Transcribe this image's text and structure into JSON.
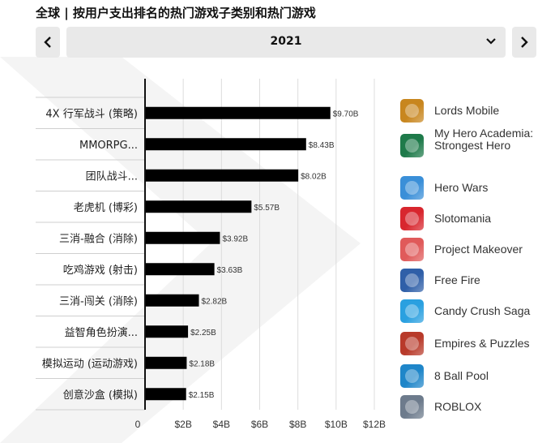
{
  "header": {
    "title": "全球 | 按用户支出排名的热门游戏子类别和热门游戏",
    "year": "2021"
  },
  "chart_data": {
    "type": "bar",
    "orientation": "horizontal",
    "categories": [
      "4X 行军战斗 (策略)",
      "MMORPG...",
      "团队战斗...",
      "老虎机 (博彩)",
      "三消-融合 (消除)",
      "吃鸡游戏 (射击)",
      "三消-闯关 (消除)",
      "益智角色扮演...",
      "模拟运动 (运动游戏)",
      "创意沙盒 (模拟)"
    ],
    "values": [
      9.7,
      8.43,
      8.02,
      5.57,
      3.92,
      3.63,
      2.82,
      2.25,
      2.18,
      2.15
    ],
    "value_labels": [
      "$9.70B",
      "$8.43B",
      "$8.02B",
      "$5.57B",
      "$3.92B",
      "$3.63B",
      "$2.82B",
      "$2.25B",
      "$2.18B",
      "$2.15B"
    ],
    "xlim": [
      0,
      12
    ],
    "xticks": [
      "0",
      "$2B",
      "$4B",
      "$6B",
      "$8B",
      "$10B",
      "$12B"
    ],
    "grid": true,
    "bar_color": "#000000"
  },
  "legend": {
    "games": [
      {
        "name": "Lords Mobile",
        "icon": "lords-mobile-icon",
        "color": "#c8861e"
      },
      {
        "name": "My Hero Academia: Strongest Hero",
        "icon": "my-hero-academia-icon",
        "color": "#1e7a4a"
      },
      {
        "name": "Hero Wars",
        "icon": "hero-wars-icon",
        "color": "#3a8fd8"
      },
      {
        "name": "Slotomania",
        "icon": "slotomania-icon",
        "color": "#d8262e"
      },
      {
        "name": "Project Makeover",
        "icon": "project-makeover-icon",
        "color": "#e05a5a"
      },
      {
        "name": "Free Fire",
        "icon": "free-fire-icon",
        "color": "#2f5fa8"
      },
      {
        "name": "Candy Crush Saga",
        "icon": "candy-crush-icon",
        "color": "#2aa0e0"
      },
      {
        "name": "Empires & Puzzles",
        "icon": "empires-puzzles-icon",
        "color": "#b83a2a"
      },
      {
        "name": "8 Ball Pool",
        "icon": "8-ball-pool-icon",
        "color": "#1f86c9"
      },
      {
        "name": "ROBLOX",
        "icon": "roblox-icon",
        "color": "#6d7b8c"
      }
    ]
  }
}
